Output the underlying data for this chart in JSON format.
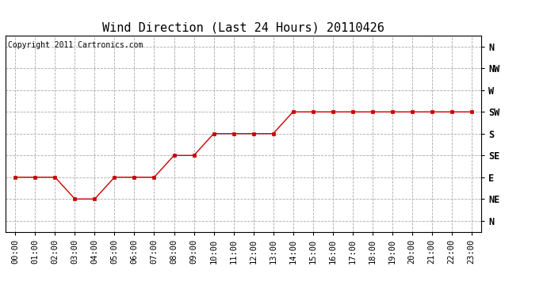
{
  "title": "Wind Direction (Last 24 Hours) 20110426",
  "copyright_text": "Copyright 2011 Cartronics.com",
  "x_labels": [
    "00:00",
    "01:00",
    "02:00",
    "03:00",
    "04:00",
    "05:00",
    "06:00",
    "07:00",
    "08:00",
    "09:00",
    "10:00",
    "11:00",
    "12:00",
    "13:00",
    "14:00",
    "15:00",
    "16:00",
    "17:00",
    "18:00",
    "19:00",
    "20:00",
    "21:00",
    "22:00",
    "23:00"
  ],
  "y_labels": [
    "N",
    "NE",
    "E",
    "SE",
    "S",
    "SW",
    "W",
    "NW",
    "N"
  ],
  "y_values": [
    0,
    1,
    2,
    3,
    4,
    5,
    6,
    7,
    8
  ],
  "wind_data": {
    "00:00": 2,
    "01:00": 2,
    "02:00": 2,
    "03:00": 1,
    "04:00": 1,
    "05:00": 2,
    "06:00": 2,
    "07:00": 2,
    "08:00": 3,
    "09:00": 3,
    "10:00": 4,
    "11:00": 4,
    "12:00": 4,
    "13:00": 4,
    "14:00": 5,
    "15:00": 5,
    "16:00": 5,
    "17:00": 5,
    "18:00": 5,
    "19:00": 5,
    "20:00": 5,
    "21:00": 5,
    "22:00": 5,
    "23:00": 5
  },
  "line_color": "#cc0000",
  "marker": "s",
  "marker_size": 3,
  "bg_color": "#ffffff",
  "plot_bg_color": "#ffffff",
  "grid_color": "#aaaaaa",
  "grid_style": "--",
  "title_fontsize": 11,
  "copyright_fontsize": 7,
  "axis_label_fontsize": 7.5,
  "ylim": [
    -0.5,
    8.5
  ]
}
